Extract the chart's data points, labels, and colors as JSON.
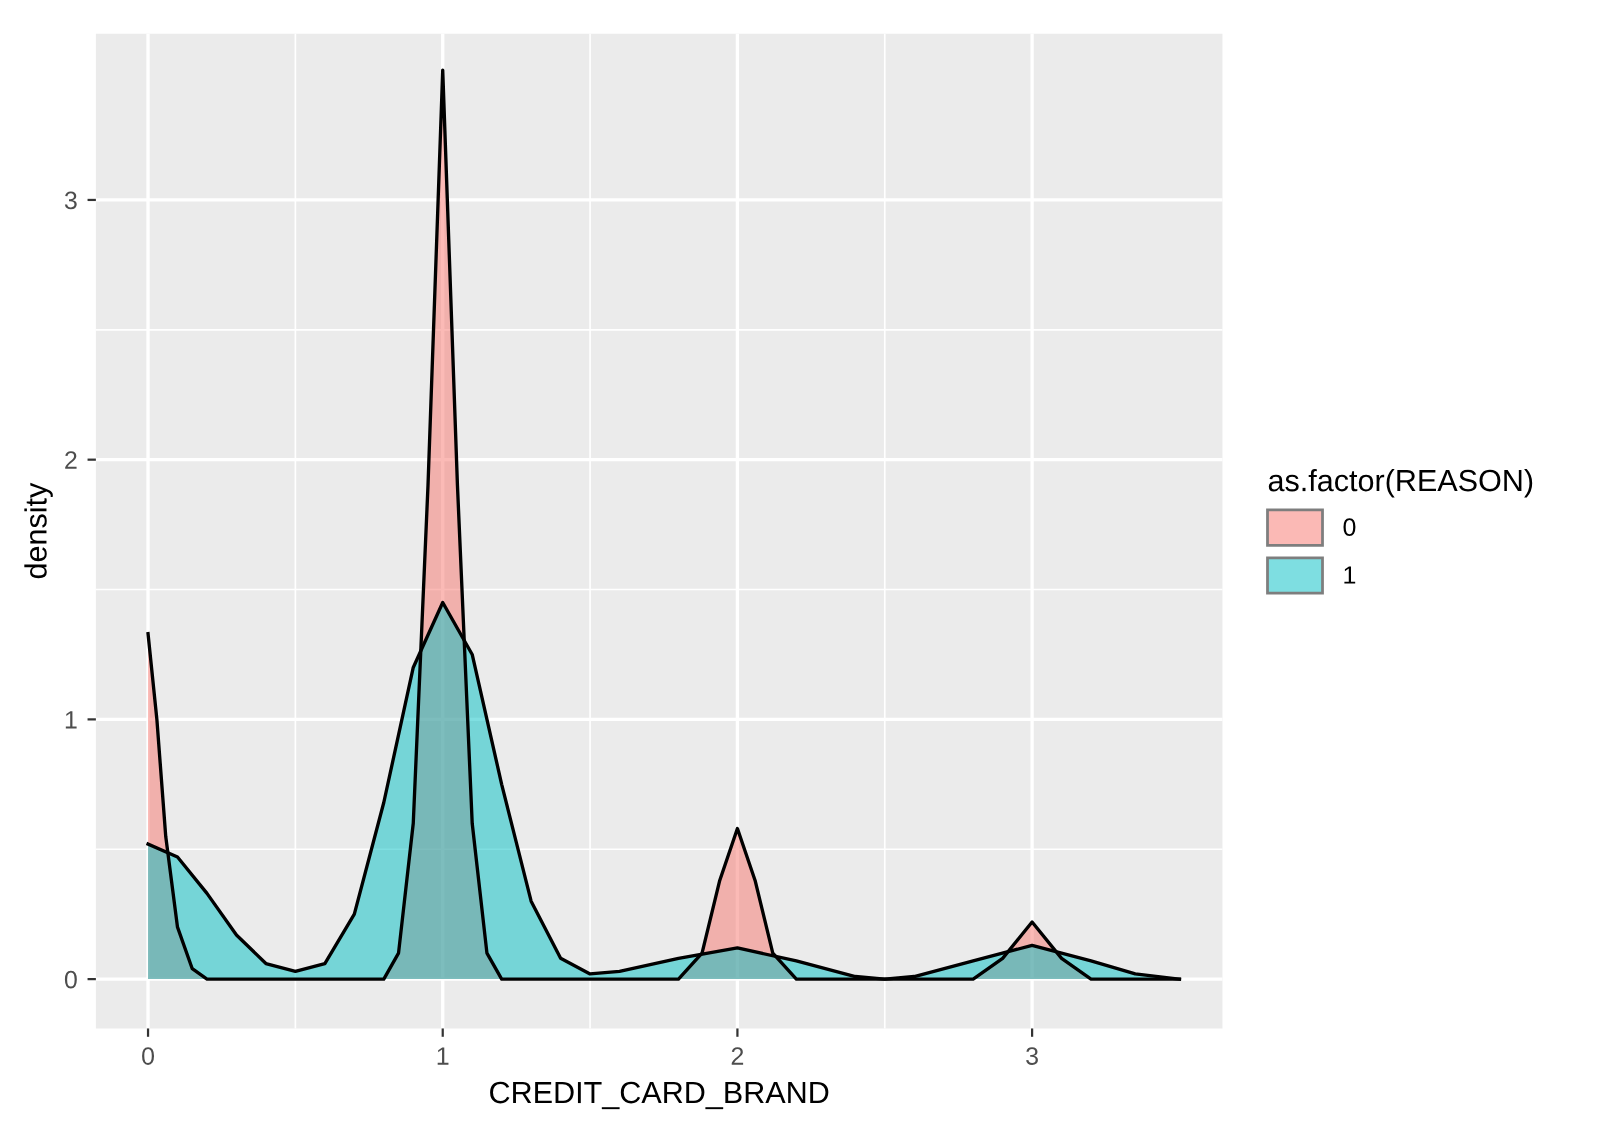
{
  "chart_data": {
    "type": "area",
    "xlabel": "CREDIT_CARD_BRAND",
    "ylabel": "density",
    "legend_title": "as.factor(REASON)",
    "xlim": [
      -0.177,
      3.646
    ],
    "ylim": [
      -0.19,
      3.64
    ],
    "xticks": [
      0,
      1,
      2,
      3
    ],
    "yticks": [
      0,
      1,
      2,
      3
    ],
    "grid": true,
    "legend": "right",
    "series": [
      {
        "name": "0",
        "color": "#f8766d",
        "x": [
          0,
          0.03,
          0.06,
          0.1,
          0.15,
          0.2,
          0.8,
          0.85,
          0.9,
          0.95,
          1.0,
          1.05,
          1.1,
          1.15,
          1.2,
          1.8,
          1.88,
          1.94,
          2.0,
          2.06,
          2.12,
          2.2,
          2.8,
          2.9,
          3.0,
          3.1,
          3.2,
          3.5
        ],
        "values": [
          1.33,
          1.0,
          0.55,
          0.2,
          0.04,
          0.0,
          0.0,
          0.1,
          0.6,
          1.9,
          3.5,
          1.9,
          0.6,
          0.1,
          0.0,
          0.0,
          0.1,
          0.38,
          0.58,
          0.38,
          0.1,
          0.0,
          0.0,
          0.08,
          0.22,
          0.08,
          0.0,
          0.0
        ]
      },
      {
        "name": "1",
        "color": "#00bfc4",
        "x": [
          0,
          0.1,
          0.2,
          0.3,
          0.4,
          0.5,
          0.6,
          0.7,
          0.8,
          0.9,
          1.0,
          1.1,
          1.2,
          1.3,
          1.4,
          1.5,
          1.6,
          1.8,
          2.0,
          2.2,
          2.4,
          2.5,
          2.6,
          2.8,
          3.0,
          3.2,
          3.35,
          3.5
        ],
        "values": [
          0.52,
          0.47,
          0.33,
          0.17,
          0.06,
          0.03,
          0.06,
          0.25,
          0.68,
          1.2,
          1.45,
          1.25,
          0.75,
          0.3,
          0.08,
          0.02,
          0.03,
          0.08,
          0.12,
          0.07,
          0.01,
          0.0,
          0.01,
          0.07,
          0.13,
          0.07,
          0.02,
          0.0
        ]
      }
    ]
  }
}
